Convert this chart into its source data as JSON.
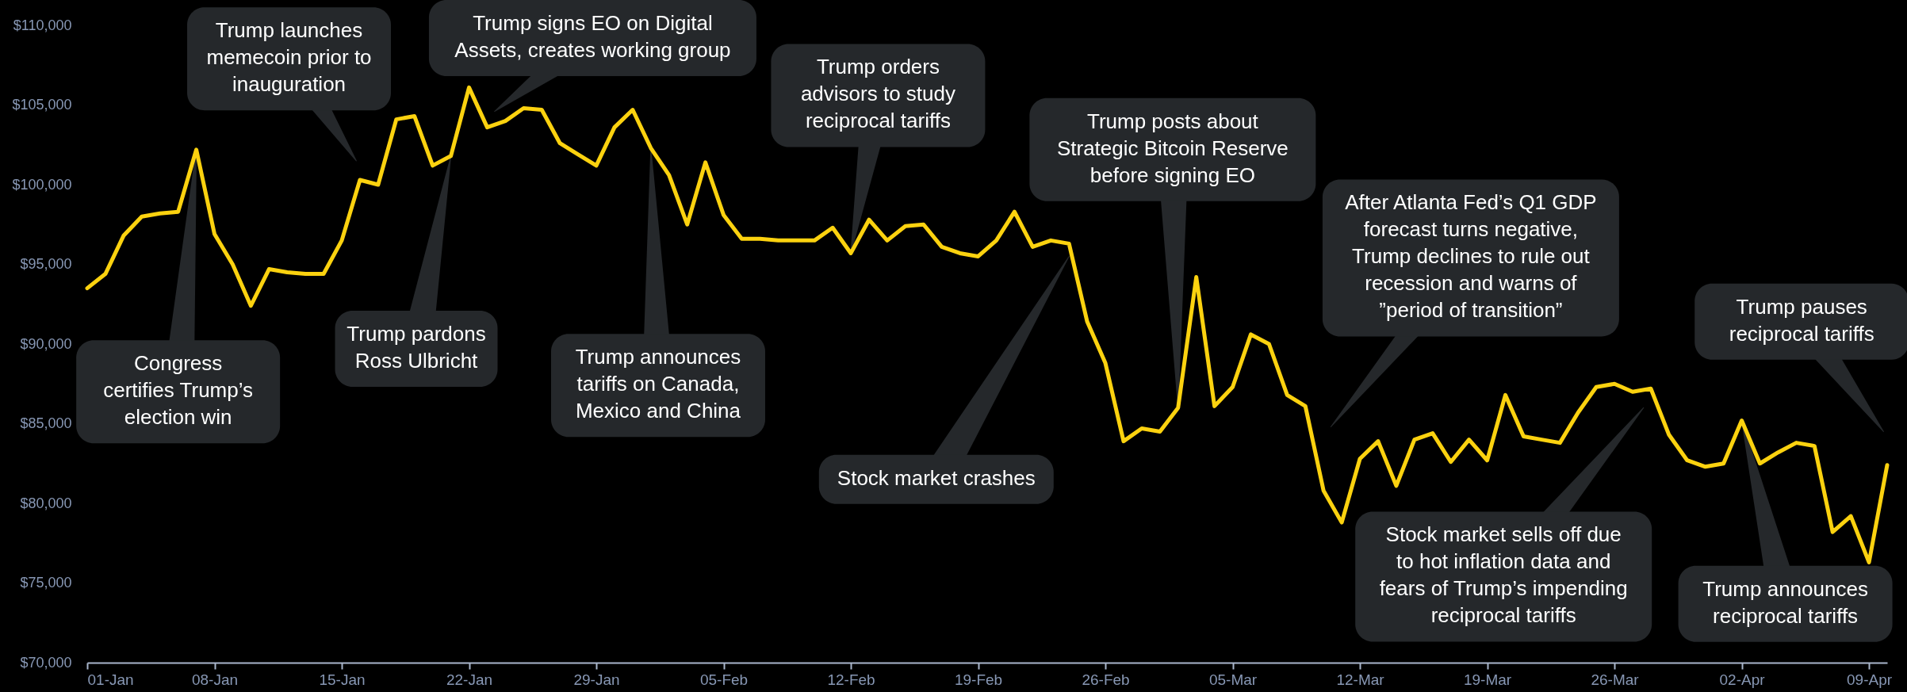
{
  "chart_data": {
    "type": "line",
    "color": "#fcd20f",
    "x": [
      "--01-01",
      "--01-02",
      "--01-03",
      "--01-04",
      "--01-05",
      "--01-06",
      "--01-07",
      "--01-08",
      "--01-09",
      "--01-10",
      "--01-11",
      "--01-12",
      "--01-13",
      "--01-14",
      "--01-15",
      "--01-16",
      "--01-17",
      "--01-18",
      "--01-19",
      "--01-20",
      "--01-21",
      "--01-22",
      "--01-23",
      "--01-24",
      "--01-25",
      "--01-26",
      "--01-27",
      "--01-28",
      "--01-29",
      "--01-30",
      "--01-31",
      "--02-01",
      "--02-02",
      "--02-03",
      "--02-04",
      "--02-05",
      "--02-06",
      "--02-07",
      "--02-08",
      "--02-09",
      "--02-10",
      "--02-11",
      "--02-12",
      "--02-13",
      "--02-14",
      "--02-15",
      "--02-16",
      "--02-17",
      "--02-18",
      "--02-19",
      "--02-20",
      "--02-21",
      "--02-22",
      "--02-23",
      "--02-24",
      "--02-25",
      "--02-26",
      "--02-27",
      "--02-28",
      "--03-01",
      "--03-02",
      "--03-03",
      "--03-04",
      "--03-05",
      "--03-06",
      "--03-07",
      "--03-08",
      "--03-09",
      "--03-10",
      "--03-11",
      "--03-12",
      "--03-13",
      "--03-14",
      "--03-15",
      "--03-16",
      "--03-17",
      "--03-18",
      "--03-19",
      "--03-20",
      "--03-21",
      "--03-22",
      "--03-23",
      "--03-24",
      "--03-25",
      "--03-26",
      "--03-27",
      "--03-28",
      "--03-29",
      "--03-30",
      "--03-31",
      "--04-01",
      "--04-02",
      "--04-03",
      "--04-04",
      "--04-05",
      "--04-06",
      "--04-07",
      "--04-08",
      "--04-09",
      "--04-10"
    ],
    "values": [
      93500,
      94400,
      96800,
      98000,
      98200,
      98300,
      102200,
      96900,
      95000,
      92400,
      94700,
      94500,
      94400,
      94400,
      96500,
      100300,
      100000,
      104100,
      104300,
      101200,
      101800,
      106100,
      103600,
      104000,
      104800,
      104700,
      102600,
      101900,
      101200,
      103600,
      104700,
      102300,
      100600,
      97500,
      101400,
      98100,
      96600,
      96600,
      96500,
      96500,
      96500,
      97300,
      95700,
      97800,
      96500,
      97400,
      97500,
      96100,
      95700,
      95500,
      96500,
      98300,
      96100,
      96500,
      96300,
      91400,
      88800,
      83900,
      84700,
      84500,
      86000,
      94200,
      86100,
      87300,
      90600,
      90000,
      86800,
      86100,
      80800,
      78800,
      82800,
      83900,
      81100,
      84000,
      84400,
      82600,
      84000,
      82700,
      86800,
      84200,
      84000,
      83800,
      85700,
      87300,
      87500,
      87000,
      87200,
      84300,
      82700,
      82300,
      82500,
      85200,
      82500,
      83200,
      83800,
      83600,
      78200,
      79200,
      76300,
      82400
    ],
    "xlim": [
      "--01-01",
      "--04-10"
    ],
    "ylim": [
      70000,
      110000
    ],
    "xticks": [
      {
        "value": "--01-01",
        "label": "01-Jan"
      },
      {
        "value": "--01-08",
        "label": "08-Jan"
      },
      {
        "value": "--01-15",
        "label": "15-Jan"
      },
      {
        "value": "--01-22",
        "label": "22-Jan"
      },
      {
        "value": "--01-29",
        "label": "29-Jan"
      },
      {
        "value": "--02-05",
        "label": "05-Feb"
      },
      {
        "value": "--02-12",
        "label": "12-Feb"
      },
      {
        "value": "--02-19",
        "label": "19-Feb"
      },
      {
        "value": "--02-26",
        "label": "26-Feb"
      },
      {
        "value": "--03-05",
        "label": "05-Mar"
      },
      {
        "value": "--03-12",
        "label": "12-Mar"
      },
      {
        "value": "--03-19",
        "label": "19-Mar"
      },
      {
        "value": "--03-26",
        "label": "26-Mar"
      },
      {
        "value": "--04-02",
        "label": "02-Apr"
      },
      {
        "value": "--04-09",
        "label": "09-Apr"
      }
    ],
    "yticks": [
      {
        "value": 70000,
        "label": "$70,000"
      },
      {
        "value": 75000,
        "label": "$75,000"
      },
      {
        "value": 80000,
        "label": "$80,000"
      },
      {
        "value": 85000,
        "label": "$85,000"
      },
      {
        "value": 90000,
        "label": "$90,000"
      },
      {
        "value": 95000,
        "label": "$95,000"
      },
      {
        "value": 100000,
        "label": "$100,000"
      },
      {
        "value": 105000,
        "label": "$105,000"
      },
      {
        "value": 110000,
        "label": "$110,000"
      }
    ],
    "annotations": [
      {
        "text": "Congress certifies Trump’s election win",
        "x": "--01-07",
        "y": 102200
      },
      "Trump launches memecoin prior to inauguration",
      "Trump signs EO on Digital Assets, creates working group",
      {
        "text": "Trump pardons Ross Ulbricht",
        "x": "--01-21",
        "y": 101800
      },
      {
        "text": "Trump announces tariffs on Canada, Mexico and China",
        "x": "--02-01",
        "y": 102300
      },
      {
        "text": "Trump orders advisors to study reciprocal tariffs",
        "x": "--02-12",
        "y": 95700
      },
      "Stock market crashes",
      {
        "text": "Trump posts about Strategic Bitcoin Reserve before signing EO",
        "x": "--03-02",
        "y": 86000
      },
      "After Atlanta Fed’s Q1 GDP forecast turns negative, Trump declines to rule out recession and warns of ”period of transition”",
      "Stock market sells off due to hot inflation data and fears of Trump’s impending reciprocal tariffs",
      {
        "text": "Trump announces reciprocal tariffs",
        "x": "--04-02",
        "y": 85200
      },
      "Trump pauses reciprocal tariffs"
    ]
  }
}
